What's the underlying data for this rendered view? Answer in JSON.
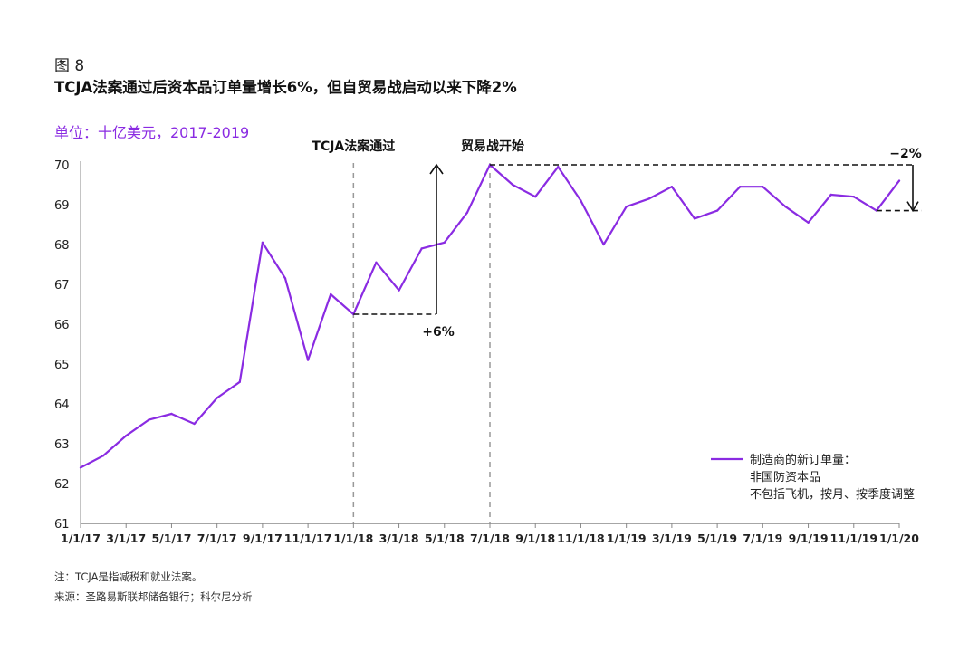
{
  "figure_label": "图 8",
  "title": "TCJA法案通过后资本品订单量增长6%，但自贸易战启动以来下降2%",
  "unit_label": "单位：十亿美元，2017-2019",
  "notes": {
    "note": "注：TCJA是指减税和就业法案。",
    "source": "来源：圣路易斯联邦储备银行；科尔尼分析"
  },
  "colors": {
    "series": "#8a2be2",
    "axis": "#888888",
    "annotation": "#111111"
  },
  "chart_data": {
    "type": "line",
    "y_ticks": [
      "61",
      "62",
      "63",
      "64",
      "65",
      "66",
      "67",
      "68",
      "69",
      "70"
    ],
    "ylim": [
      61,
      70
    ],
    "x_tick_labels": [
      "1/1/17",
      "3/1/17",
      "5/1/17",
      "7/1/17",
      "9/1/17",
      "11/1/17",
      "1/1/18",
      "3/1/18",
      "5/1/18",
      "7/1/18",
      "9/1/18",
      "11/1/18",
      "1/1/19",
      "3/1/19",
      "5/1/19",
      "7/1/19",
      "9/1/19",
      "11/1/19",
      "1/1/20"
    ],
    "grid": false,
    "series": [
      {
        "name": "制造商的新订单量：非国防资本品不包括飞机，按月、按季度调整",
        "values": [
          62.4,
          62.7,
          63.2,
          63.6,
          63.75,
          63.5,
          64.15,
          64.55,
          68.05,
          67.15,
          65.1,
          66.75,
          66.25,
          67.55,
          66.85,
          67.9,
          68.05,
          68.8,
          70.0,
          69.5,
          69.2,
          69.95,
          69.1,
          68.0,
          68.95,
          69.15,
          69.45,
          68.65,
          68.85,
          69.45,
          69.45,
          68.95,
          68.55,
          69.25,
          69.2,
          68.85,
          69.6
        ]
      }
    ],
    "legend": {
      "position": "bottom-right",
      "lines": [
        "制造商的新订单量：",
        "非国防资本品",
        "不包括飞机，按月、按季度调整"
      ]
    },
    "annotations": {
      "event1": "TCJA法案通过",
      "event2": "贸易战开始",
      "increase": "+6%",
      "decrease": "−2%"
    }
  }
}
